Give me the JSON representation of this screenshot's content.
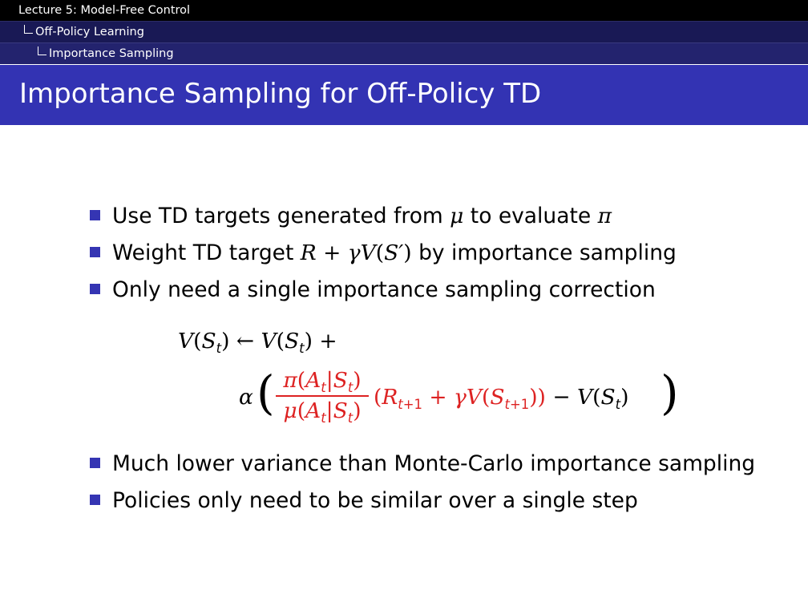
{
  "header": {
    "lecture": "Lecture 5: Model-Free Control",
    "section": "Off-Policy Learning",
    "subsection": "Importance Sampling"
  },
  "slide": {
    "title": "Importance Sampling for Off-Policy TD"
  },
  "bullets_top": [
    {
      "pre": "Use TD targets generated from ",
      "sym1": "μ",
      "mid": " to evaluate ",
      "sym2": "π"
    },
    {
      "pre": "Weight TD target ",
      "post": " by importance sampling"
    },
    {
      "text": "Only need a single importance sampling correction"
    }
  ],
  "bullets_bottom": [
    {
      "text": "Much lower variance than Monte-Carlo importance sampling"
    },
    {
      "text": "Policies only need to be similar over a single step"
    }
  ],
  "colors": {
    "header_black": "#000000",
    "header_navy": "#191955",
    "header_navy2": "#23236e",
    "title_bar": "#3333b3",
    "bullet": "#3535b3",
    "highlight": "#dd2222"
  }
}
